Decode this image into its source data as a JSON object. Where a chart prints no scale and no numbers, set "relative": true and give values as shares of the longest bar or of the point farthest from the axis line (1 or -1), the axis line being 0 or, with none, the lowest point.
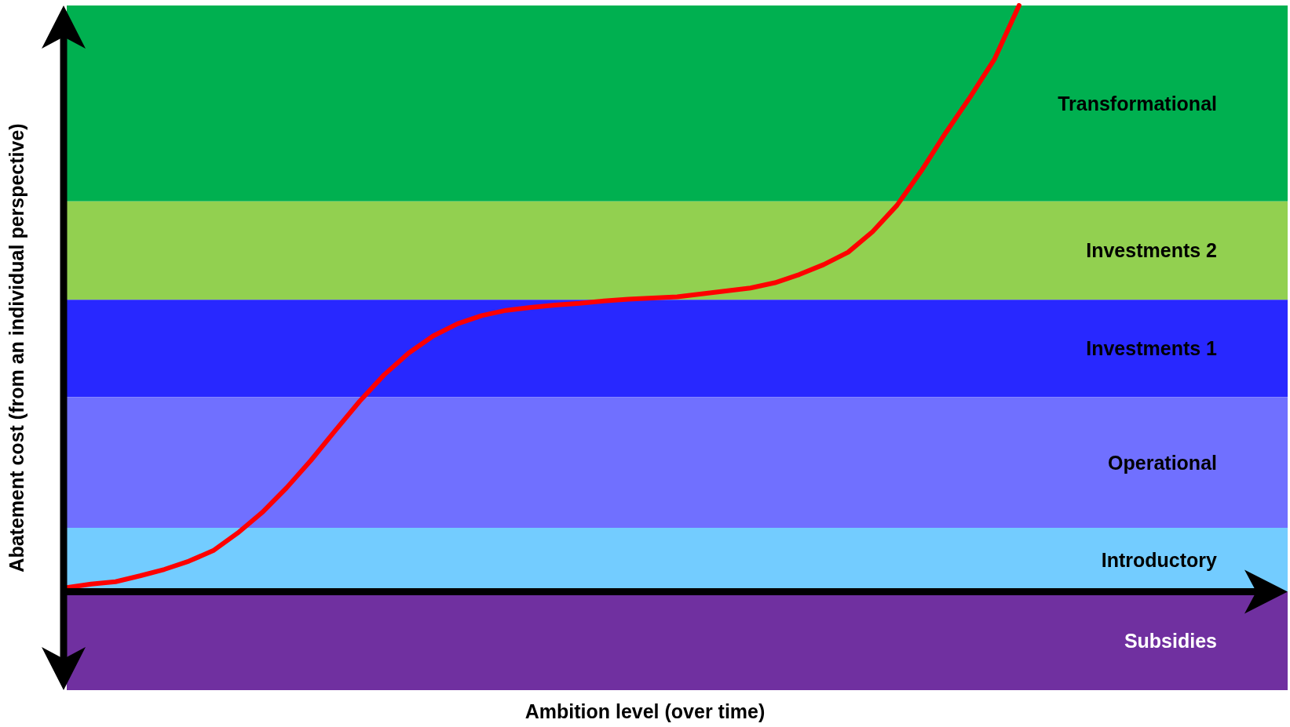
{
  "chart_data": {
    "type": "line",
    "relative": true,
    "annotations": [
      "Ambition level (over time)"
    ],
    "ylabel": "Abatement cost (from an individual perspective)",
    "categories": [
      null,
      null,
      null,
      null,
      null,
      null,
      null,
      null,
      null,
      null,
      null,
      null,
      null,
      null,
      null,
      null,
      null,
      null,
      null,
      null,
      null,
      null,
      null,
      null,
      null,
      null,
      null,
      null,
      null,
      null,
      null,
      null,
      null,
      null,
      null,
      null,
      null,
      null,
      null,
      null,
      null,
      null,
      null,
      null,
      null,
      null,
      null,
      null,
      null,
      null,
      null
    ],
    "series": [
      {
        "color": "#ff0000",
        "values": [
          0.007,
          0.013,
          0.017,
          0.027,
          0.038,
          0.052,
          0.07,
          0.1,
          0.135,
          0.177,
          0.224,
          0.275,
          0.325,
          0.37,
          0.407,
          0.436,
          0.457,
          0.471,
          0.48,
          0.485,
          0.489,
          0.492,
          0.496,
          0.499,
          0.501,
          0.503,
          0.508,
          0.513,
          0.518,
          0.527,
          0.541,
          0.558,
          0.579,
          0.614,
          0.659,
          0.718,
          0.783,
          0.844,
          0.909,
          1.0,
          null,
          null,
          null,
          null,
          null,
          null,
          null,
          null,
          null,
          null,
          null
        ]
      }
    ],
    "bands": [
      {
        "axis": "y",
        "from": 0.666,
        "to": 1.0,
        "label": "Transformational",
        "color": "#00b050"
      },
      {
        "axis": "y",
        "from": 0.498,
        "to": 0.666,
        "label": "Investments 2",
        "color": "#92d050"
      },
      {
        "axis": "y",
        "from": 0.332,
        "to": 0.498,
        "label": "Investments 1",
        "color": "#2828ff"
      },
      {
        "axis": "y",
        "from": 0.109,
        "to": 0.332,
        "label": "Operational",
        "color": "#7070ff"
      },
      {
        "axis": "y",
        "from": 0.0,
        "to": 0.109,
        "label": "Introductory",
        "color": "#73ccff"
      },
      {
        "axis": "y",
        "from": -0.168,
        "to": 0.0,
        "label": "Subsidies",
        "color": "#7030a0"
      }
    ]
  }
}
